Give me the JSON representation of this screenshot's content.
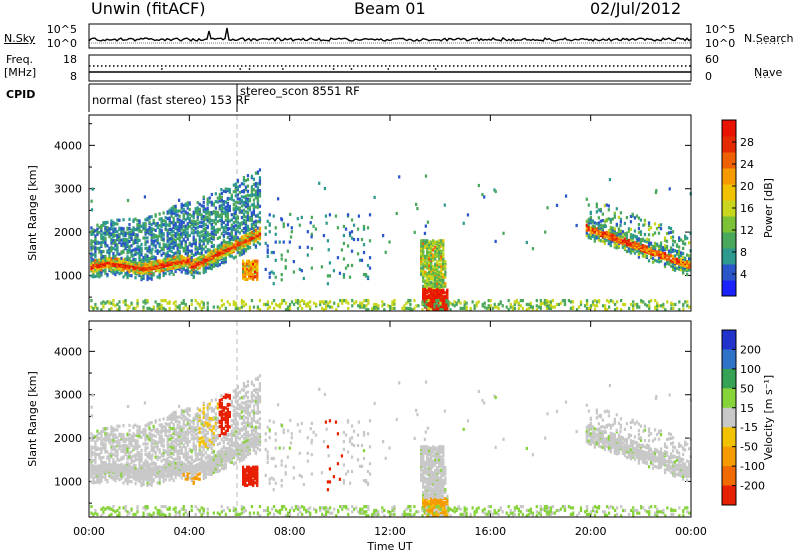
{
  "header": {
    "station": "Unwin (fitACF)",
    "beam": "Beam 01",
    "date": "02/Jul/2012"
  },
  "panels": {
    "nsky": {
      "left_label": "N.Sky",
      "right_label": "N.Search",
      "left_ticks": [
        "10^5",
        "10^0"
      ],
      "right_ticks": [
        "10^5",
        "10^0"
      ]
    },
    "freq": {
      "label_line1": "Freq.",
      "label_line2": "[MHz]",
      "right_label": "Nave",
      "left_ticks": [
        "18",
        "8"
      ],
      "right_ticks": [
        "60",
        "0"
      ]
    },
    "cpid": {
      "label": "CPID",
      "segments": [
        {
          "start_hour": 0.0,
          "name": "normal (fast stereo) 153 RF"
        },
        {
          "start_hour": 5.9,
          "name": "stereo_scon 8551 RF"
        }
      ]
    }
  },
  "chart_data": [
    {
      "type": "heatmap",
      "name": "power",
      "ylabel": "Slant Range [km]",
      "yticks": [
        1000,
        2000,
        3000,
        4000
      ],
      "ylim": [
        180,
        4700
      ],
      "xlim": [
        0,
        24
      ],
      "colorbar_label": "Power [dB]",
      "colorbar_ticks": [
        "4",
        "8",
        "12",
        "16",
        "20",
        "24",
        "28"
      ],
      "colorbar_range": [
        0,
        32
      ],
      "colors": [
        "#1a22ff",
        "#2a56c9",
        "#2e9a8f",
        "#4aa85c",
        "#7cc236",
        "#c8d61e",
        "#f2c200",
        "#f59a00",
        "#ef6000",
        "#e62a00",
        "#ea1200"
      ]
    },
    {
      "type": "heatmap",
      "name": "velocity",
      "ylabel": "Slant Range [km]",
      "yticks": [
        1000,
        2000,
        3000,
        4000
      ],
      "ylim": [
        180,
        4700
      ],
      "xlim": [
        0,
        24
      ],
      "colorbar_label": "Velocity [m s⁻¹]",
      "colorbar_ticks": [
        "200",
        "100",
        "50",
        "15",
        "-15",
        "-50",
        "-100",
        "-200"
      ],
      "colors": {
        "pos_high": "#2233cc",
        "pos_mid": "#2f73c9",
        "pos_low1": "#36a256",
        "pos_low2": "#86d33a",
        "zero": "#c8c8c8",
        "neg_low": "#f2c200",
        "neg_mid": "#f59b00",
        "neg_mid2": "#f06a00",
        "neg_high": "#e62000"
      }
    }
  ],
  "time_axis": {
    "label": "Time UT",
    "ticks": [
      "00:00",
      "04:00",
      "08:00",
      "12:00",
      "16:00",
      "20:00",
      "00:00"
    ]
  }
}
